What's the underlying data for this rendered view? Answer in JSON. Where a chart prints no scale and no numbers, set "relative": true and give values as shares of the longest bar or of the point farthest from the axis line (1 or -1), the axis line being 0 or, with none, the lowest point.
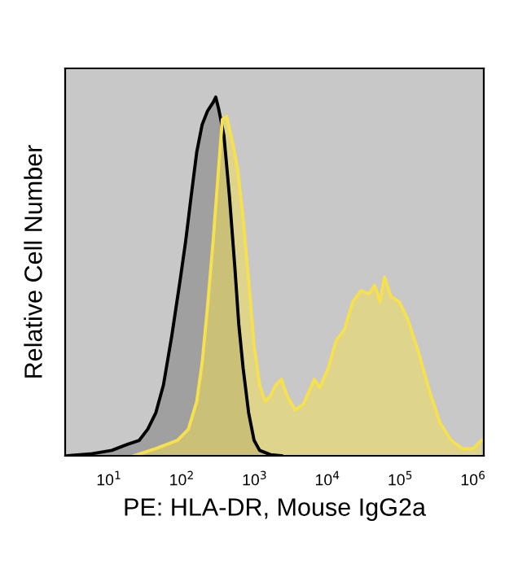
{
  "chart_data": {
    "type": "area",
    "relative": true,
    "log": "x",
    "xlabel": "PE: HLA-DR, Mouse IgG2a",
    "ylabel": "Relative Cell Number",
    "xlim": [
      2.5,
      1400000
    ],
    "xticks": [
      {
        "value": 10,
        "label": "10$^{1}$"
      },
      {
        "value": 100,
        "label": "10$^{2}$"
      },
      {
        "value": 1000,
        "label": "10$^{3}$"
      },
      {
        "value": 10000,
        "label": "10$^{4}$"
      },
      {
        "value": 100000,
        "label": "10$^{5}$"
      },
      {
        "value": 1000000,
        "label": "10$^{6}$"
      }
    ],
    "tick_labels": "x",
    "grid": false,
    "legend": false,
    "series": [
      {
        "color": "#000000",
        "x": [
          2.7,
          5.5,
          10.9,
          18,
          26,
          34,
          44,
          56,
          73,
          95,
          113,
          134,
          160,
          190,
          225,
          269,
          292,
          319,
          379,
          451,
          536,
          605,
          695,
          826,
          982,
          1170,
          1650,
          2330
        ],
        "values": [
          0,
          0.005,
          0.015,
          0.032,
          0.043,
          0.074,
          0.12,
          0.198,
          0.336,
          0.491,
          0.599,
          0.722,
          0.846,
          0.923,
          0.961,
          0.985,
          1,
          0.969,
          0.892,
          0.722,
          0.522,
          0.367,
          0.244,
          0.12,
          0.043,
          0.015,
          0.003,
          0
        ]
      },
      {
        "color": "#f5e050",
        "x": [
          21.8,
          44,
          87,
          123,
          160,
          190,
          225,
          269,
          319,
          360,
          414,
          492,
          585,
          695,
          826,
          982,
          1170,
          1390,
          1650,
          1960,
          2330,
          2780,
          3600,
          4670,
          6600,
          7850,
          10200,
          13200,
          17100,
          22200,
          28800,
          37200,
          44400,
          52700,
          60500,
          74500,
          96600,
          125000,
          177000,
          250000,
          354000,
          500000,
          708000,
          1000000,
          1300000
        ],
        "values": [
          0,
          0.02,
          0.043,
          0.074,
          0.151,
          0.259,
          0.414,
          0.599,
          0.799,
          0.938,
          0.946,
          0.877,
          0.799,
          0.66,
          0.491,
          0.306,
          0.198,
          0.151,
          0.167,
          0.198,
          0.213,
          0.167,
          0.128,
          0.144,
          0.213,
          0.19,
          0.244,
          0.321,
          0.352,
          0.429,
          0.46,
          0.452,
          0.475,
          0.429,
          0.498,
          0.444,
          0.429,
          0.383,
          0.29,
          0.182,
          0.09,
          0.043,
          0.02,
          0.02,
          0.043
        ]
      }
    ]
  }
}
